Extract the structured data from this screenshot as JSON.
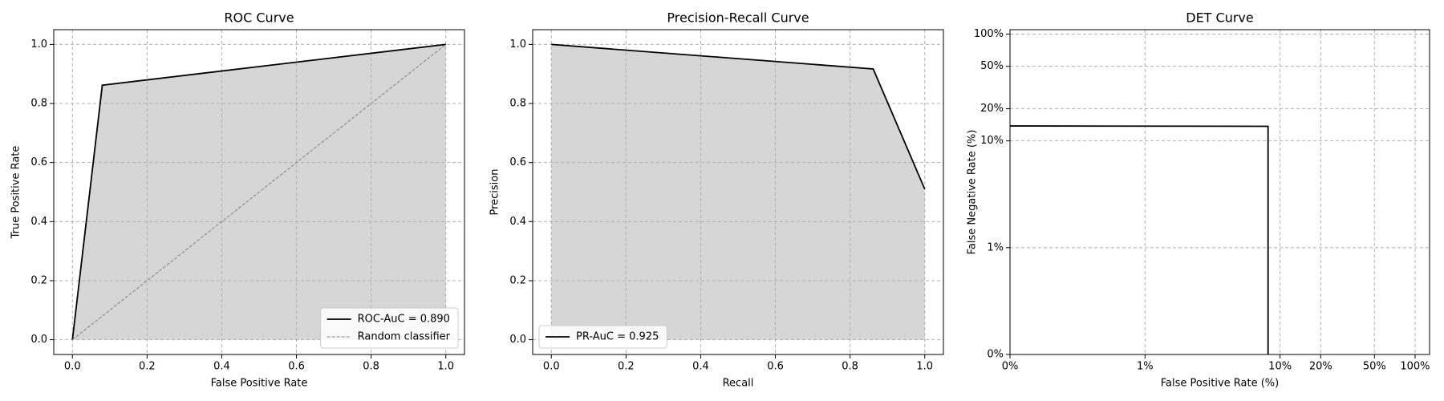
{
  "chart_data": [
    {
      "type": "line",
      "title": "ROC Curve",
      "xlabel": "False Positive Rate",
      "ylabel": "True Positive Rate",
      "xlim": [
        -0.05,
        1.05
      ],
      "ylim": [
        -0.05,
        1.05
      ],
      "xticks": [
        {
          "value": 0,
          "label": "0.0"
        },
        {
          "value": 0.2,
          "label": "0.2"
        },
        {
          "value": 0.4,
          "label": "0.4"
        },
        {
          "value": 0.6,
          "label": "0.6"
        },
        {
          "value": 0.8,
          "label": "0.8"
        },
        {
          "value": 1,
          "label": "1.0"
        }
      ],
      "yticks": [
        {
          "value": 0,
          "label": "0.0"
        },
        {
          "value": 0.2,
          "label": "0.2"
        },
        {
          "value": 0.4,
          "label": "0.4"
        },
        {
          "value": 0.6,
          "label": "0.6"
        },
        {
          "value": 0.8,
          "label": "0.8"
        },
        {
          "value": 1,
          "label": "1.0"
        }
      ],
      "grid": true,
      "fill": true,
      "legend": "lower right",
      "series": [
        {
          "name": "ROC-AuC = 0.890",
          "color": "#000000",
          "x": [
            0,
            0.08,
            1
          ],
          "values": [
            0,
            0.862,
            1
          ]
        },
        {
          "name": "Random classifier",
          "color": "#808080",
          "linestyle": "dashed",
          "x": [
            0,
            1
          ],
          "values": [
            0,
            1
          ]
        }
      ]
    },
    {
      "type": "line",
      "title": "Precision-Recall Curve",
      "xlabel": "Recall",
      "ylabel": "Precision",
      "xlim": [
        -0.05,
        1.05
      ],
      "ylim": [
        -0.05,
        1.05
      ],
      "xticks": [
        {
          "value": 0,
          "label": "0.0"
        },
        {
          "value": 0.2,
          "label": "0.2"
        },
        {
          "value": 0.4,
          "label": "0.4"
        },
        {
          "value": 0.6,
          "label": "0.6"
        },
        {
          "value": 0.8,
          "label": "0.8"
        },
        {
          "value": 1,
          "label": "1.0"
        }
      ],
      "yticks": [
        {
          "value": 0,
          "label": "0.0"
        },
        {
          "value": 0.2,
          "label": "0.2"
        },
        {
          "value": 0.4,
          "label": "0.4"
        },
        {
          "value": 0.6,
          "label": "0.6"
        },
        {
          "value": 0.8,
          "label": "0.8"
        },
        {
          "value": 1,
          "label": "1.0"
        }
      ],
      "grid": true,
      "fill": true,
      "legend": "lower left",
      "series": [
        {
          "name": "PR-AuC = 0.925",
          "color": "#000000",
          "x": [
            0,
            0.862,
            1
          ],
          "values": [
            1,
            0.917,
            0.51
          ]
        }
      ]
    },
    {
      "type": "line",
      "title": "DET Curve",
      "xlabel": "False Positive Rate (%)",
      "ylabel": "False Negative Rate (%)",
      "xscale": "log",
      "yscale": "log",
      "xlim": [
        0.1,
        128
      ],
      "ylim": [
        0.1,
        110
      ],
      "xticks": [
        {
          "value": 0.1,
          "label": "0%"
        },
        {
          "value": 1,
          "label": "1%"
        },
        {
          "value": 10,
          "label": "10%"
        },
        {
          "value": 20,
          "label": "20%"
        },
        {
          "value": 50,
          "label": "50%"
        },
        {
          "value": 100,
          "label": "100%"
        }
      ],
      "yticks": [
        {
          "value": 0.1,
          "label": "0%"
        },
        {
          "value": 1,
          "label": "1%"
        },
        {
          "value": 10,
          "label": "10%"
        },
        {
          "value": 20,
          "label": "20%"
        },
        {
          "value": 50,
          "label": "50%"
        },
        {
          "value": 100,
          "label": "100%"
        }
      ],
      "grid": true,
      "series": [
        {
          "color": "#000000",
          "x": [
            0.1,
            8.15,
            8.15
          ],
          "values": [
            13.8,
            13.7,
            0.1
          ]
        }
      ]
    }
  ]
}
